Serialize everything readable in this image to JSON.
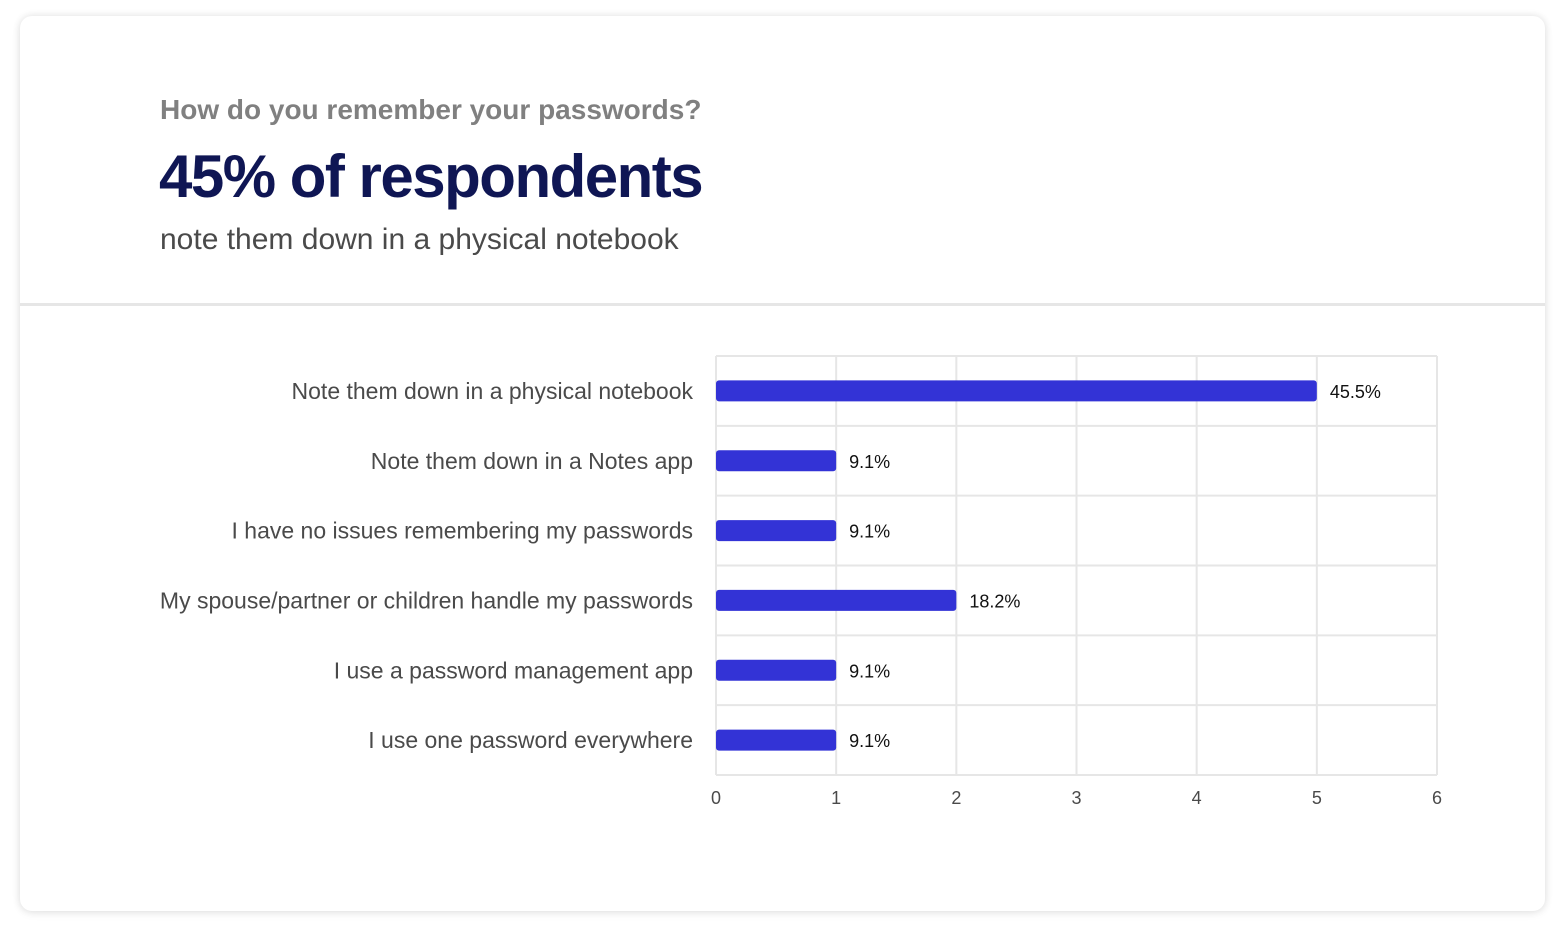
{
  "header": {
    "question": "How do you remember your passwords?",
    "headline": "45% of respondents",
    "subline": "note them down in a physical notebook"
  },
  "colors": {
    "bar": "#3333d6",
    "headline": "#0f1654",
    "grid": "#e6e6e6"
  },
  "chart_data": {
    "type": "bar",
    "orientation": "horizontal",
    "categories": [
      "Note them down in a physical notebook",
      "Note them down in a Notes app",
      "I have no issues remembering my passwords",
      "My spouse/partner or children handle my passwords",
      "I use a password management app",
      "I use one password everywhere"
    ],
    "values": [
      5,
      1,
      1,
      2,
      1,
      1
    ],
    "data_labels": [
      "45.5%",
      "9.1%",
      "9.1%",
      "18.2%",
      "9.1%",
      "9.1%"
    ],
    "xlim": [
      0,
      6
    ],
    "xticks": [
      "0",
      "1",
      "2",
      "3",
      "4",
      "5",
      "6"
    ],
    "grid": true,
    "legend": "none"
  }
}
